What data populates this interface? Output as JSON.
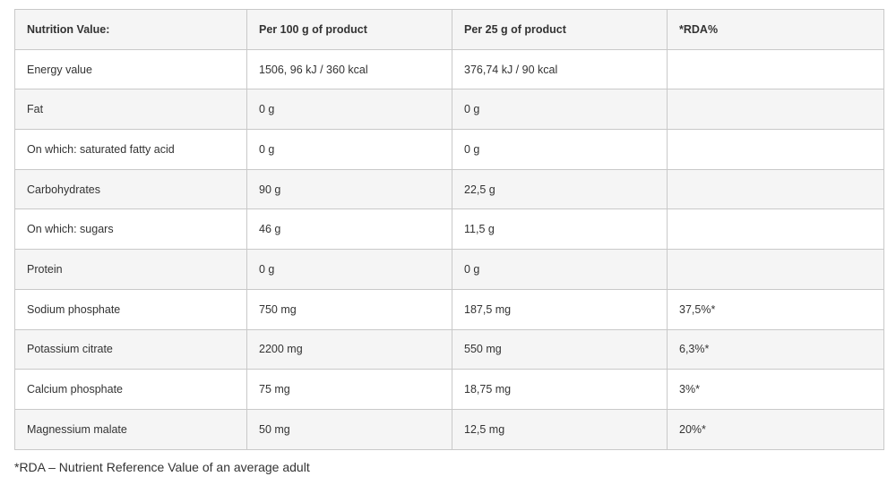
{
  "table": {
    "headers": [
      "Nutrition Value:",
      "Per 100 g of product",
      "Per 25 g of product",
      "*RDA%"
    ],
    "rows": [
      [
        "Energy value",
        "1506, 96 kJ / 360 kcal",
        "376,74 kJ / 90 kcal",
        ""
      ],
      [
        "Fat",
        "0 g",
        "0 g",
        ""
      ],
      [
        "On which: saturated fatty acid",
        "0 g",
        "0 g",
        ""
      ],
      [
        "Carbohydrates",
        "90 g",
        "22,5 g",
        ""
      ],
      [
        "On which: sugars",
        "46 g",
        "11,5 g",
        ""
      ],
      [
        "Protein",
        "0 g",
        "0 g",
        ""
      ],
      [
        "Sodium phosphate",
        "750 mg",
        "187,5 mg",
        "37,5%*"
      ],
      [
        "Potassium citrate",
        "2200 mg",
        "550 mg",
        "6,3%*"
      ],
      [
        "Calcium phosphate",
        "75 mg",
        "18,75 mg",
        "3%*"
      ],
      [
        "Magnessium malate",
        "50 mg",
        "12,5 mg",
        "20%*"
      ]
    ]
  },
  "footnote": "*RDA – Nutrient Reference Value of an average adult"
}
